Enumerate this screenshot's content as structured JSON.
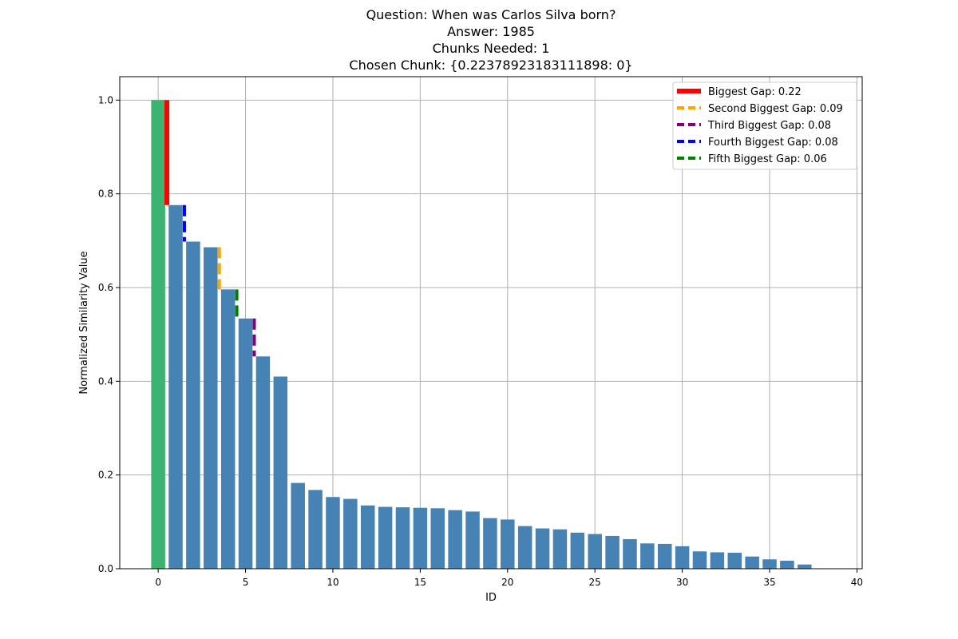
{
  "chart_data": {
    "type": "bar",
    "title_lines": [
      "Question: When was Carlos Silva born?",
      "Answer: 1985",
      "Chunks Needed: 1",
      "Chosen Chunk: {0.22378923183111898: 0}"
    ],
    "xlabel": "ID",
    "ylabel": "Normalized Similarity Value",
    "xlim": [
      -2.2,
      40.3
    ],
    "ylim": [
      0,
      1.05
    ],
    "x_ticks": [
      0,
      5,
      10,
      15,
      20,
      25,
      30,
      35,
      40
    ],
    "y_ticks": [
      0.0,
      0.2,
      0.4,
      0.6,
      0.8,
      1.0
    ],
    "y_tick_labels": [
      "0.0",
      "0.2",
      "0.4",
      "0.6",
      "0.8",
      "1.0"
    ],
    "grid": true,
    "legend_position": "top-right",
    "colors": {
      "bar": "#4682b4",
      "highlight_bar": "#3cb371"
    },
    "highlight_ids": [
      0
    ],
    "ids": [
      0,
      1,
      2,
      3,
      4,
      5,
      6,
      7,
      8,
      9,
      10,
      11,
      12,
      13,
      14,
      15,
      16,
      17,
      18,
      19,
      20,
      21,
      22,
      23,
      24,
      25,
      26,
      27,
      28,
      29,
      30,
      31,
      32,
      33,
      34,
      35,
      36,
      37
    ],
    "values": [
      1.0,
      0.776,
      0.698,
      0.686,
      0.596,
      0.534,
      0.453,
      0.41,
      0.183,
      0.168,
      0.153,
      0.149,
      0.135,
      0.132,
      0.131,
      0.13,
      0.129,
      0.125,
      0.122,
      0.108,
      0.105,
      0.091,
      0.086,
      0.084,
      0.077,
      0.074,
      0.07,
      0.063,
      0.054,
      0.053,
      0.048,
      0.037,
      0.035,
      0.034,
      0.026,
      0.02,
      0.017,
      0.009
    ],
    "gaps": [
      {
        "label": "Biggest Gap: 0.22",
        "color": "#ff0000",
        "style": "solid",
        "x": 0.5,
        "y_top": 1.0,
        "y_bottom": 0.776
      },
      {
        "label": "Second Biggest Gap: 0.09",
        "color": "#ffa500",
        "style": "dashed",
        "x": 3.5,
        "y_top": 0.686,
        "y_bottom": 0.596
      },
      {
        "label": "Third Biggest Gap: 0.08",
        "color": "#800080",
        "style": "dashed",
        "x": 5.5,
        "y_top": 0.534,
        "y_bottom": 0.453
      },
      {
        "label": "Fourth Biggest Gap: 0.08",
        "color": "#0000ff",
        "style": "dashed",
        "x": 1.5,
        "y_top": 0.776,
        "y_bottom": 0.698
      },
      {
        "label": "Fifth Biggest Gap: 0.06",
        "color": "#008000",
        "style": "dashed",
        "x": 4.5,
        "y_top": 0.596,
        "y_bottom": 0.534
      }
    ]
  }
}
